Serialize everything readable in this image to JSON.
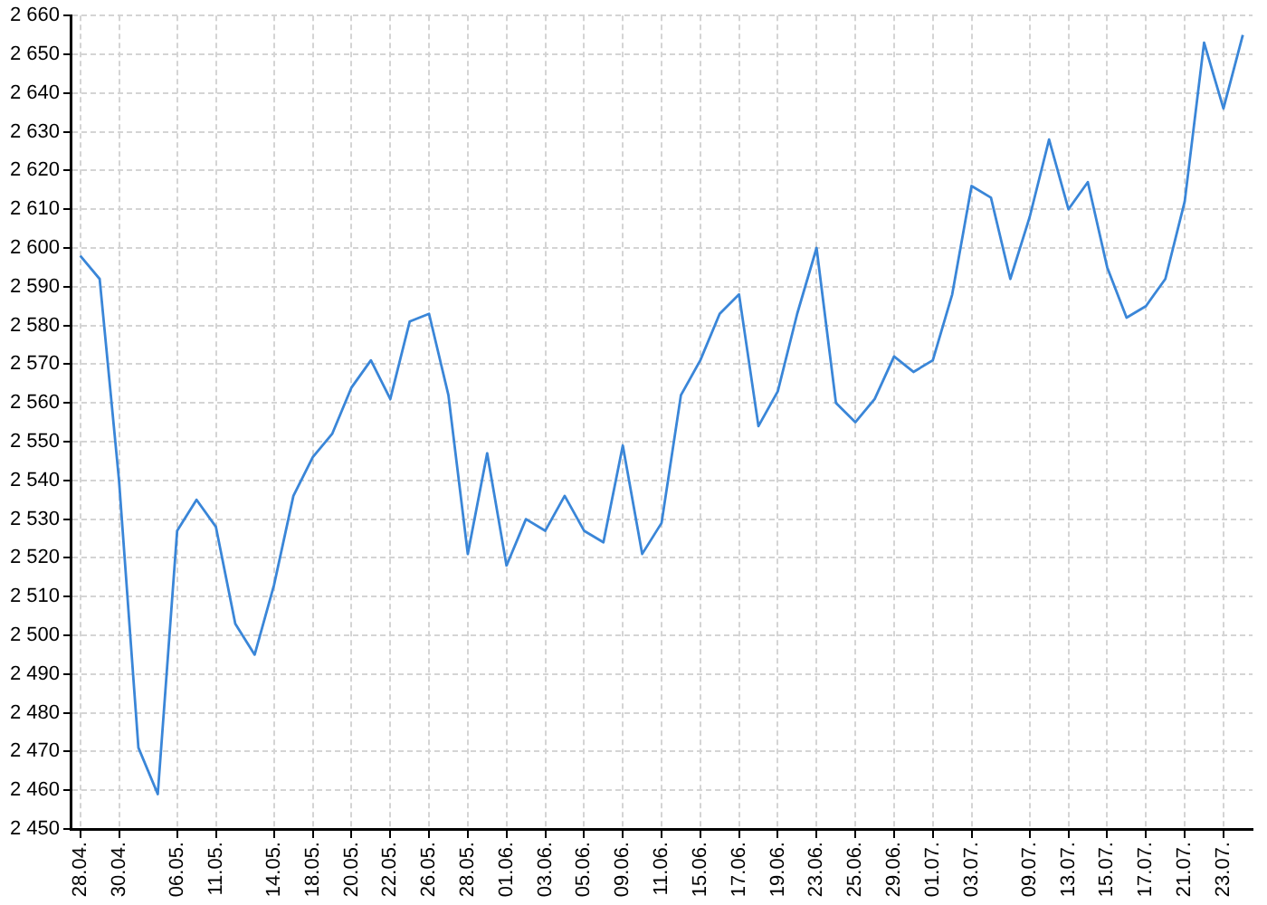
{
  "chart_data": {
    "type": "line",
    "categories": [
      "28.04.",
      null,
      "30.04.",
      null,
      null,
      "06.05.",
      null,
      "11.05.",
      null,
      null,
      "14.05.",
      null,
      "18.05.",
      null,
      "20.05.",
      null,
      "22.05.",
      null,
      "26.05.",
      null,
      "28.05.",
      null,
      "01.06.",
      null,
      "03.06.",
      null,
      "05.06.",
      null,
      "09.06.",
      null,
      "11.06.",
      null,
      "15.06.",
      null,
      "17.06.",
      null,
      "19.06.",
      null,
      "23.06.",
      null,
      "25.06.",
      null,
      "29.06.",
      null,
      "01.07.",
      null,
      "03.07.",
      null,
      null,
      "09.07.",
      null,
      "13.07.",
      null,
      "15.07.",
      null,
      "17.07.",
      null,
      "21.07.",
      null,
      "23.07.",
      null
    ],
    "values": [
      2598,
      2592,
      2540,
      2471,
      2459,
      2527,
      2535,
      2528,
      2503,
      2495,
      2513,
      2536,
      2546,
      2552,
      2564,
      2571,
      2561,
      2581,
      2583,
      2562,
      2521,
      2547,
      2518,
      2530,
      2527,
      2536,
      2527,
      2524,
      2549,
      2521,
      2529,
      2562,
      2571,
      2583,
      2588,
      2554,
      2563,
      2583,
      2600,
      2560,
      2555,
      2561,
      2572,
      2568,
      2571,
      2588,
      2616,
      2613,
      2592,
      2608,
      2628,
      2610,
      2617,
      2595,
      2582,
      2585,
      2592,
      2612,
      2653,
      2636,
      2655
    ],
    "color": "#3a86d8",
    "ylim": [
      2450,
      2660
    ],
    "yticks": [
      {
        "value": 2450,
        "label": "2 450"
      },
      {
        "value": 2460,
        "label": "2 460"
      },
      {
        "value": 2470,
        "label": "2 470"
      },
      {
        "value": 2480,
        "label": "2 480"
      },
      {
        "value": 2490,
        "label": "2 490"
      },
      {
        "value": 2500,
        "label": "2 500"
      },
      {
        "value": 2510,
        "label": "2 510"
      },
      {
        "value": 2520,
        "label": "2 520"
      },
      {
        "value": 2530,
        "label": "2 530"
      },
      {
        "value": 2540,
        "label": "2 540"
      },
      {
        "value": 2550,
        "label": "2 550"
      },
      {
        "value": 2560,
        "label": "2 560"
      },
      {
        "value": 2570,
        "label": "2 570"
      },
      {
        "value": 2580,
        "label": "2 580"
      },
      {
        "value": 2590,
        "label": "2 590"
      },
      {
        "value": 2600,
        "label": "2 600"
      },
      {
        "value": 2610,
        "label": "2 610"
      },
      {
        "value": 2620,
        "label": "2 620"
      },
      {
        "value": 2630,
        "label": "2 630"
      },
      {
        "value": 2640,
        "label": "2 640"
      },
      {
        "value": 2650,
        "label": "2 650"
      },
      {
        "value": 2660,
        "label": "2 660"
      }
    ],
    "grid": true,
    "marker": "none"
  }
}
